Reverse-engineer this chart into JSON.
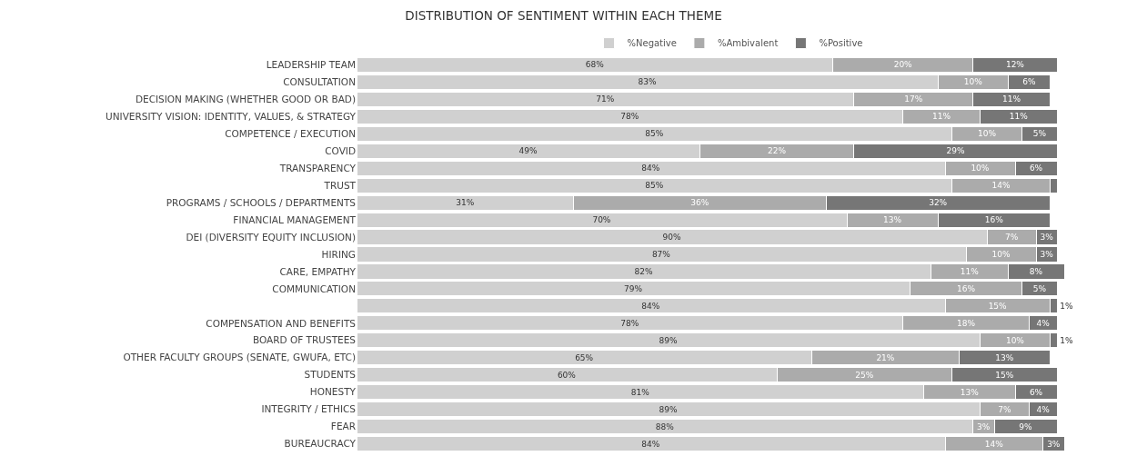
{
  "chart_data": {
    "type": "bar",
    "orientation": "horizontal",
    "stacked": true,
    "title": "DISTRIBUTION OF SENTIMENT WITHIN EACH THEME",
    "legend": "top",
    "grid": false,
    "categories": [
      "LEADERSHIP TEAM",
      "CONSULTATION",
      "DECISION MAKING (WHETHER GOOD OR BAD)",
      "UNIVERSITY VISION: IDENTITY, VALUES, & STRATEGY",
      "COMPETENCE / EXECUTION",
      "COVID",
      "TRANSPARENCY",
      "TRUST",
      "PROGRAMS / SCHOOLS / DEPARTMENTS",
      "FINANCIAL MANAGEMENT",
      "DEI (DIVERSITY EQUITY INCLUSION)",
      "HIRING",
      "CARE, EMPATHY",
      "COMMUNICATION",
      null,
      "COMPENSATION AND BENEFITS",
      "BOARD OF TRUSTEES",
      "OTHER FACULTY GROUPS (SENATE, GWUFA, ETC)",
      "STUDENTS",
      "HONESTY",
      "INTEGRITY / ETHICS",
      "FEAR",
      "BUREAUCRACY"
    ],
    "series": [
      {
        "name": "%Negative",
        "color": "#d0d0d0",
        "values": [
          68,
          83,
          71,
          78,
          85,
          49,
          84,
          85,
          31,
          70,
          90,
          87,
          82,
          79,
          84,
          78,
          89,
          65,
          60,
          81,
          89,
          88,
          84
        ],
        "value_labels": [
          "68%",
          "83%",
          "71%",
          "78%",
          "85%",
          "49%",
          "84%",
          "85%",
          "31%",
          "70%",
          "90%",
          "87%",
          "82%",
          "79%",
          "84%",
          "78%",
          "89%",
          "65%",
          "60%",
          "81%",
          "89%",
          "88%",
          "84%"
        ]
      },
      {
        "name": "%Ambivalent",
        "color": "#ababab",
        "values": [
          20,
          10,
          17,
          11,
          10,
          22,
          10,
          14,
          36,
          13,
          7,
          10,
          11,
          16,
          15,
          18,
          10,
          21,
          25,
          13,
          7,
          3,
          14
        ],
        "value_labels": [
          "20%",
          "10%",
          "17%",
          "11%",
          "10%",
          "22%",
          "10%",
          "14%",
          "36%",
          "13%",
          "7%",
          "10%",
          "11%",
          "16%",
          "15%",
          "18%",
          "10%",
          "21%",
          "25%",
          "13%",
          "7%",
          "3%",
          "14%"
        ]
      },
      {
        "name": "%Positive",
        "color": "#767676",
        "values": [
          12,
          6,
          11,
          11,
          5,
          29,
          6,
          1,
          32,
          16,
          3,
          3,
          8,
          5,
          1,
          4,
          1,
          13,
          15,
          6,
          4,
          9,
          3
        ],
        "value_labels": [
          "12%",
          "6%",
          "11%",
          "11%",
          "5%",
          "29%",
          "6%",
          null,
          "32%",
          "16%",
          "3%",
          "3%",
          "8%",
          "5%",
          "1%",
          "4%",
          "1%",
          "13%",
          "15%",
          "6%",
          "4%",
          "9%",
          "3%"
        ]
      }
    ]
  }
}
